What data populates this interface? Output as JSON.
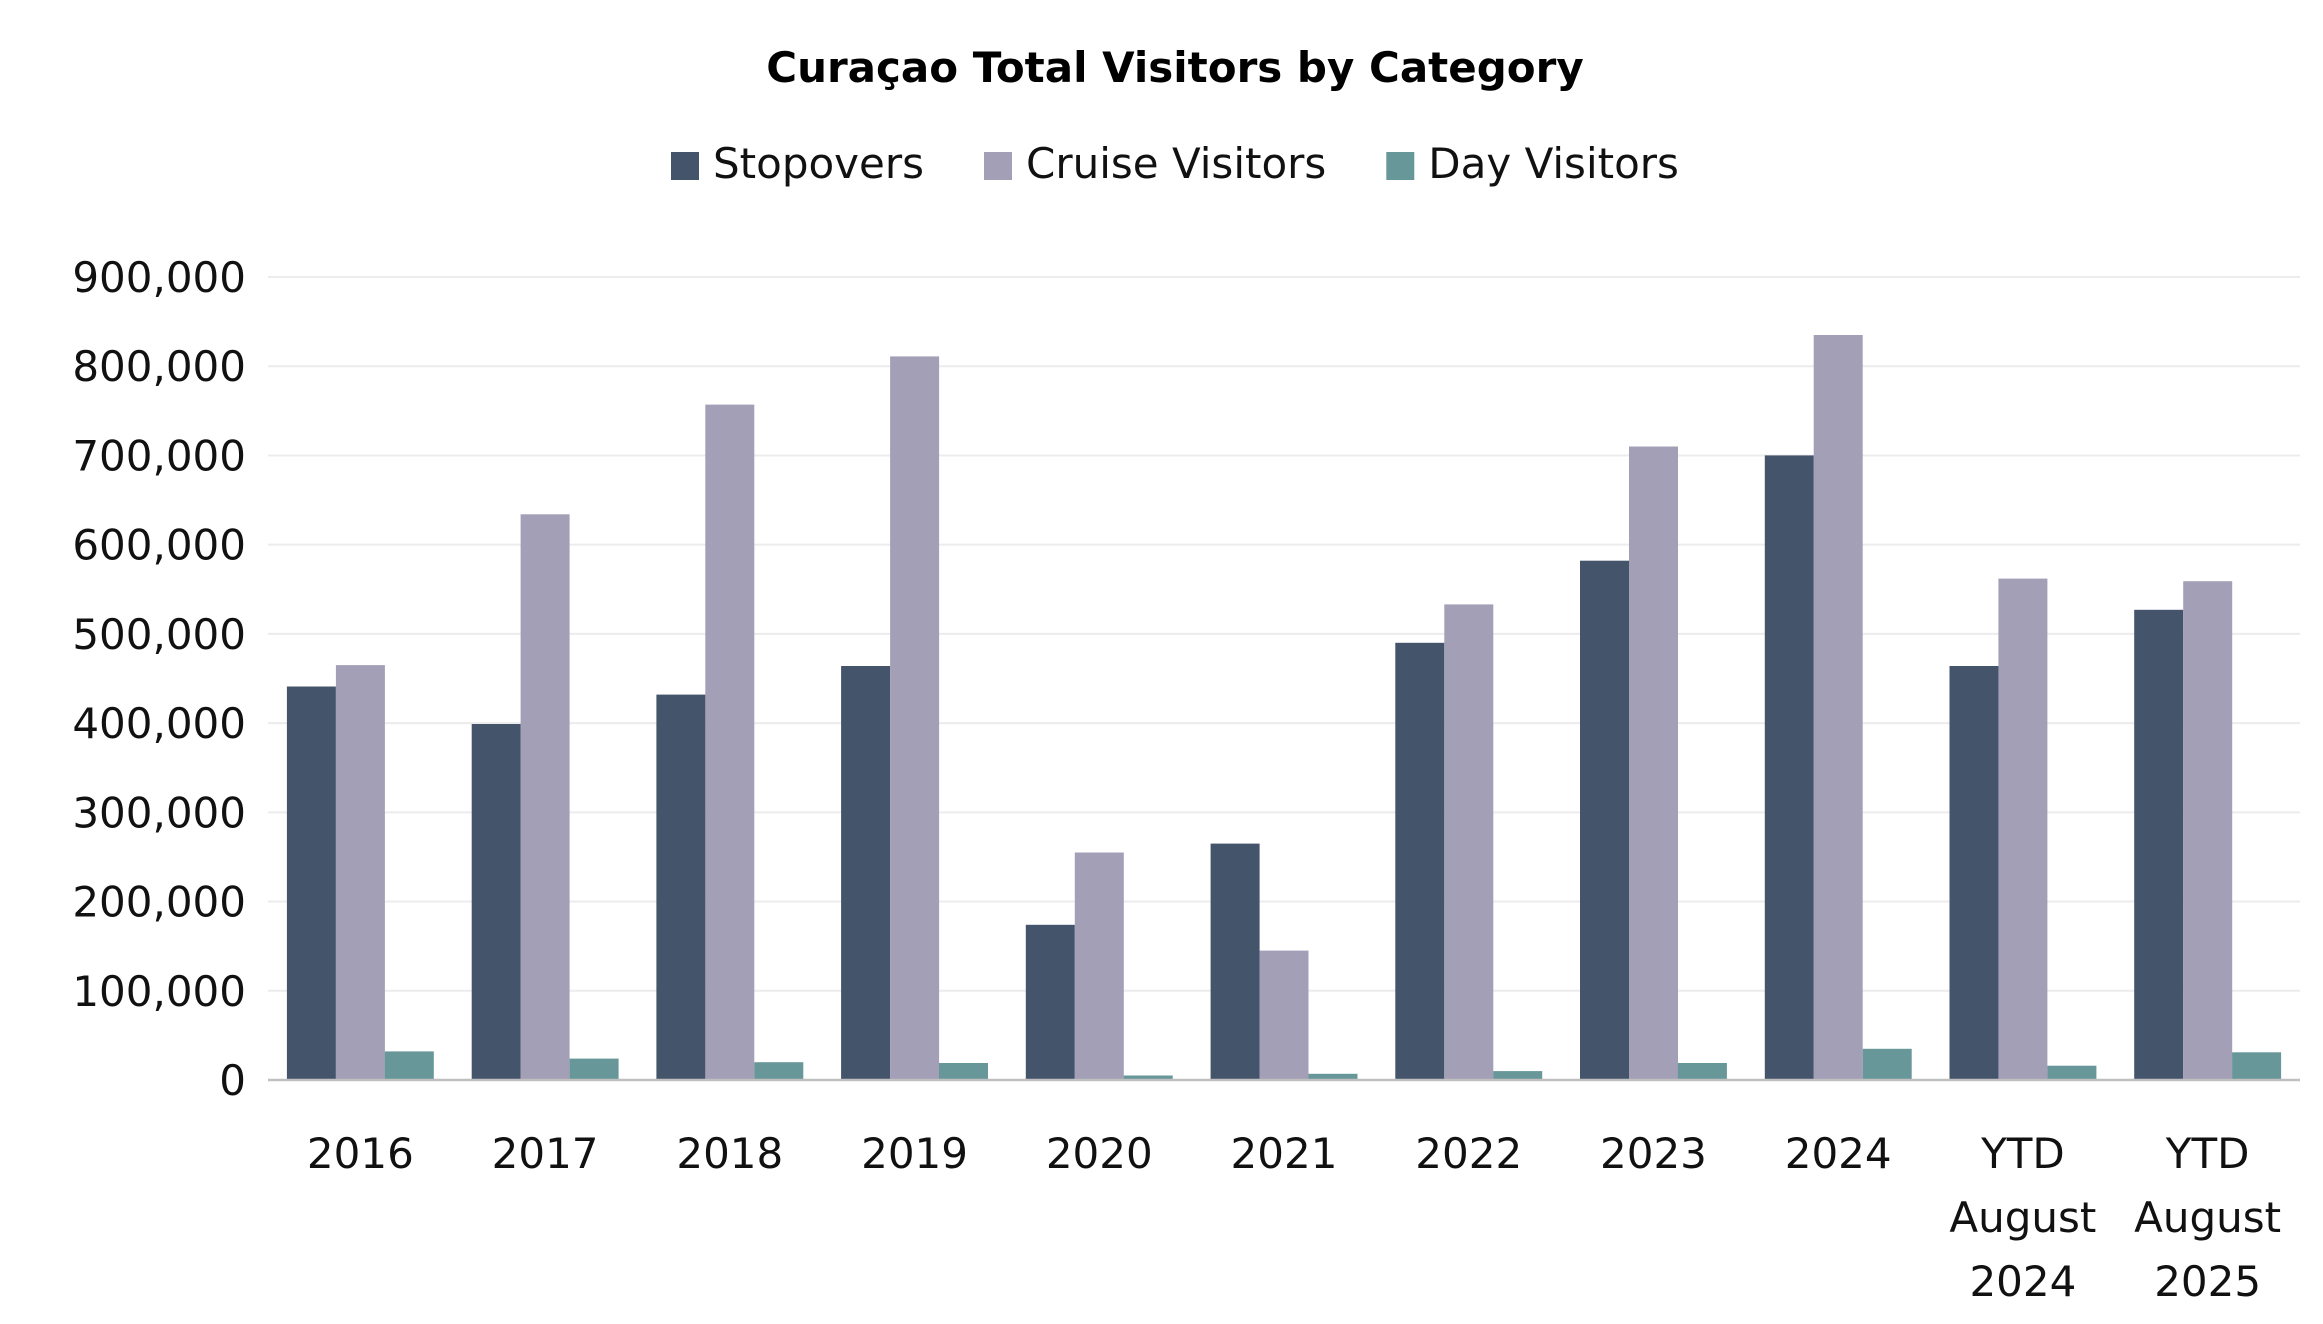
{
  "chart_data": {
    "type": "bar",
    "title": "Curaçao Total Visitors by Category",
    "xlabel": "",
    "ylabel": "",
    "categories": [
      [
        "2016"
      ],
      [
        "2017"
      ],
      [
        "2018"
      ],
      [
        "2019"
      ],
      [
        "2020"
      ],
      [
        "2021"
      ],
      [
        "2022"
      ],
      [
        "2023"
      ],
      [
        "2024"
      ],
      [
        "YTD",
        "August",
        "2024"
      ],
      [
        "YTD",
        "August",
        "2025"
      ]
    ],
    "series": [
      {
        "name": "Stopovers",
        "color": "#44546a",
        "values": [
          441000,
          399000,
          432000,
          464000,
          174000,
          265000,
          490000,
          582000,
          700000,
          464000,
          527000
        ]
      },
      {
        "name": "Cruise Visitors",
        "color": "#a39fb7",
        "values": [
          465000,
          634000,
          757000,
          811000,
          255000,
          145000,
          533000,
          710000,
          835000,
          562000,
          559000
        ]
      },
      {
        "name": "Day Visitors",
        "color": "#679799",
        "values": [
          32000,
          24000,
          20000,
          19000,
          5000,
          7000,
          10000,
          19000,
          35000,
          16000,
          31000
        ]
      }
    ],
    "yticks": [
      "0",
      "100,000",
      "200,000",
      "300,000",
      "400,000",
      "500,000",
      "600,000",
      "700,000",
      "800,000",
      "900,000"
    ],
    "ylim": [
      0,
      900000
    ],
    "ytick_step": 100000,
    "grid": true,
    "legend": "top-center",
    "gridline_color": "#ececec",
    "axis_color": "#bfbfbf"
  }
}
